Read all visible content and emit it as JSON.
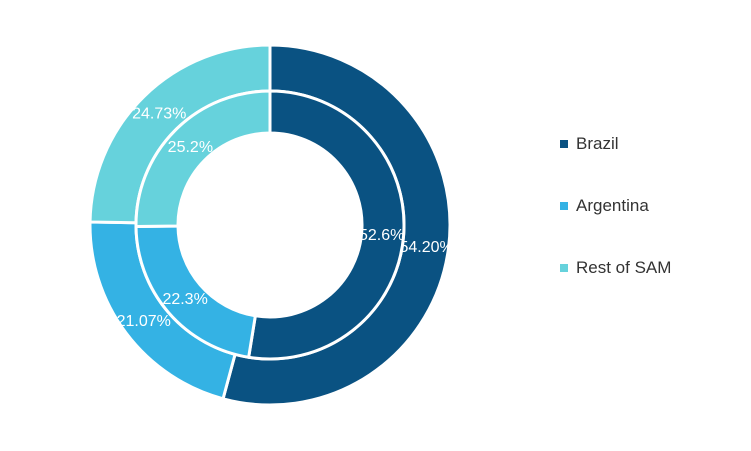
{
  "chart_data": {
    "type": "pie",
    "subtype": "nested-donut",
    "categories": [
      "Brazil",
      "Argentina",
      "Rest of SAM"
    ],
    "colors": [
      "#0a5282",
      "#34b2e4",
      "#66d2dc"
    ],
    "series": [
      {
        "ring": "outer",
        "values": [
          54.2,
          21.07,
          24.73
        ],
        "labels": [
          "54.20%",
          "21.07%",
          "24.73%"
        ]
      },
      {
        "ring": "inner",
        "values": [
          52.6,
          22.3,
          25.2
        ],
        "labels": [
          "52.6%",
          "22.3%",
          "25.2%"
        ]
      }
    ],
    "legend_position": "right"
  }
}
